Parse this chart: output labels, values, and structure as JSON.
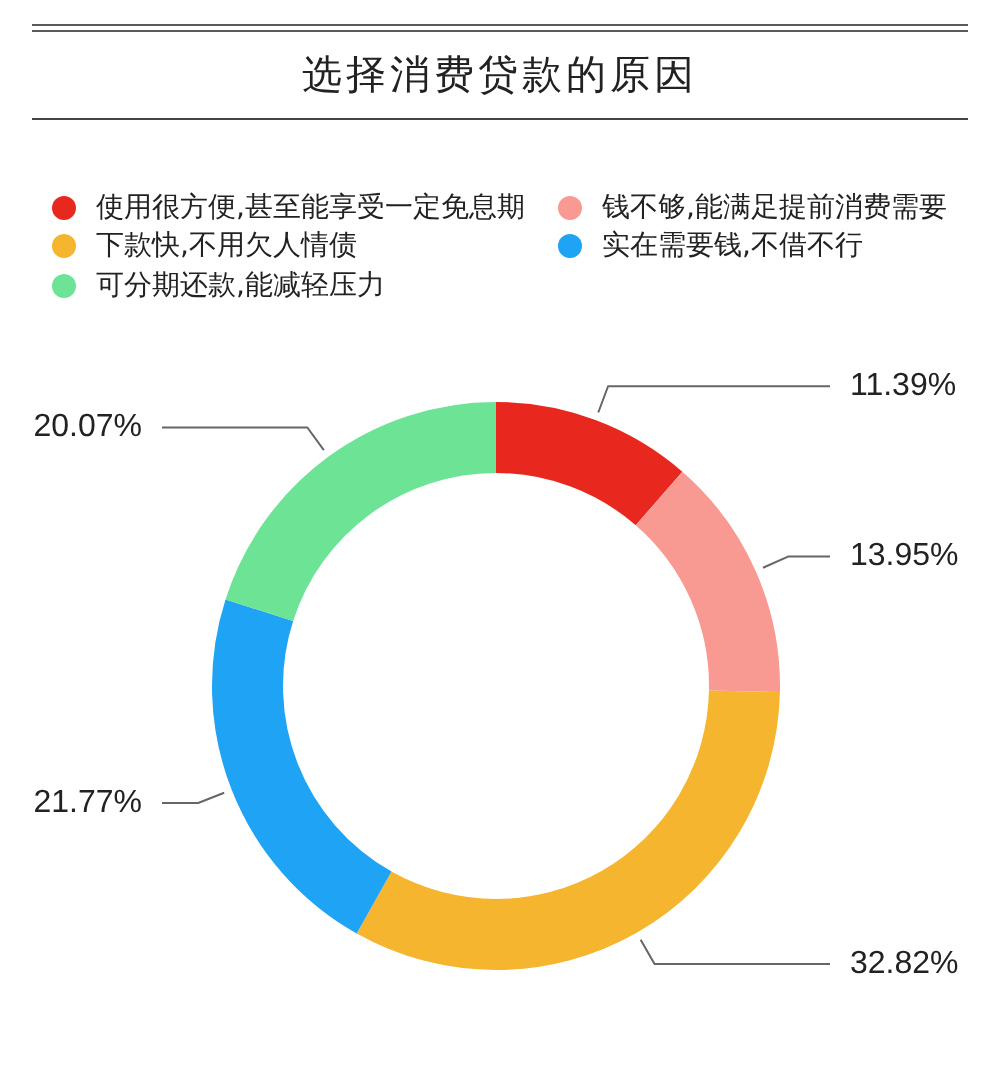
{
  "chart_data": {
    "type": "donut",
    "title": "选择消费贷款的原因",
    "categories": [
      "使用很方便,甚至能享受一定免息期",
      "钱不够,能满足提前消费需要",
      "下款快,不用欠人情债",
      "实在需要钱,不借不行",
      "可分期还款,能减轻压力"
    ],
    "values": [
      11.39,
      13.95,
      32.82,
      21.77,
      20.07
    ],
    "colors": [
      "#e8281f",
      "#f89a92",
      "#f5b52e",
      "#1fa3f5",
      "#6de396"
    ],
    "value_labels": [
      "11.39%",
      "13.95%",
      "32.82%",
      "21.77%",
      "20.07%"
    ],
    "legend": "top"
  }
}
